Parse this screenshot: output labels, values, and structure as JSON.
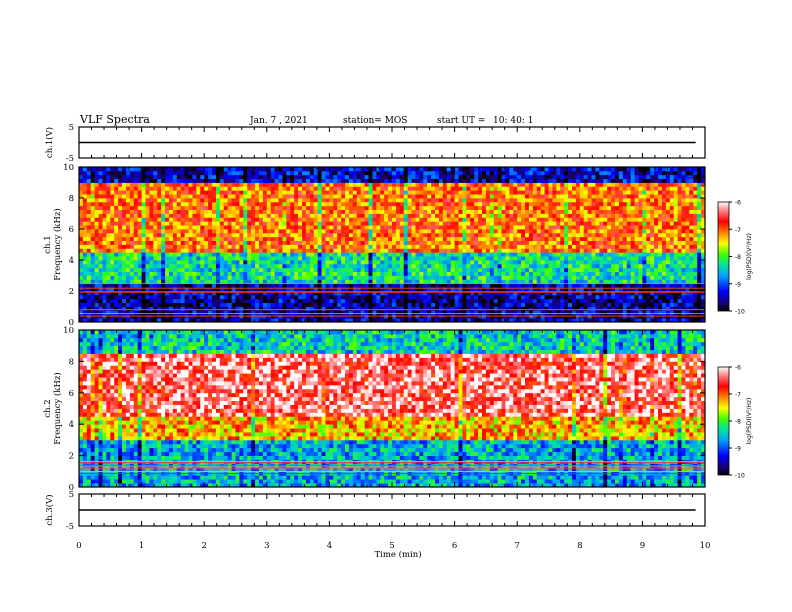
{
  "header": {
    "title": "VLF Spectra",
    "date": "Jan. 7 , 2021",
    "station": "station= MOS",
    "start": "start UT =",
    "start_time": "10: 40: 1"
  },
  "chart_data": [
    {
      "type": "line",
      "id": "ch1-waveform",
      "ylabel": "ch.1(V)",
      "ylim": [
        -5,
        5
      ],
      "yticks": [
        "5",
        "-5"
      ],
      "xlim": [
        0,
        10
      ],
      "series": [
        {
          "values": [
            [
              0,
              0
            ],
            [
              9.85,
              0
            ]
          ]
        }
      ]
    },
    {
      "type": "heatmap",
      "id": "ch1-spectrogram",
      "ylabel": "ch.1\nFrequency (kHz)",
      "ylim": [
        0,
        10
      ],
      "yticks": [
        "0",
        "2",
        "4",
        "6",
        "8",
        "10"
      ],
      "xlim": [
        0,
        10
      ],
      "colorbar": {
        "label": "log(PSD)(V²/Hz)",
        "range": [
          -10,
          -6
        ],
        "ticks": [
          "-6",
          "-7",
          "-8",
          "-9",
          "-10"
        ]
      },
      "bands": [
        {
          "freq": [
            0,
            2.5
          ],
          "level": -9.5
        },
        {
          "freq": [
            2.5,
            4.5
          ],
          "level": -8.3
        },
        {
          "freq": [
            4.5,
            9.0
          ],
          "level": -7.0
        },
        {
          "freq": [
            9.0,
            10
          ],
          "level": -9.4
        }
      ]
    },
    {
      "type": "heatmap",
      "id": "ch2-spectrogram",
      "ylabel": "ch.2\nFrequency (kHz)",
      "ylim": [
        0,
        10
      ],
      "yticks": [
        "0",
        "2",
        "4",
        "6",
        "8",
        "10"
      ],
      "xlim": [
        0,
        10
      ],
      "colorbar": {
        "label": "log(PSD)(V²/Hz)",
        "range": [
          -10,
          -6
        ],
        "ticks": [
          "-6",
          "-7",
          "-8",
          "-9",
          "-10"
        ]
      },
      "bands": [
        {
          "freq": [
            0,
            3.0
          ],
          "level": -8.6
        },
        {
          "freq": [
            3.0,
            4.5
          ],
          "level": -7.3
        },
        {
          "freq": [
            4.5,
            8.5
          ],
          "level": -6.4
        },
        {
          "freq": [
            8.5,
            10
          ],
          "level": -8.4
        }
      ]
    },
    {
      "type": "line",
      "id": "ch3-waveform",
      "ylabel": "ch.3(V)",
      "ylim": [
        -5,
        5
      ],
      "yticks": [
        "5",
        "-5"
      ],
      "xlim": [
        0,
        10
      ],
      "series": [
        {
          "values": [
            [
              0,
              0
            ],
            [
              9.85,
              0
            ]
          ]
        }
      ]
    }
  ],
  "x_axis": {
    "label": "Time (min)",
    "ticks": [
      "0",
      "1",
      "2",
      "3",
      "4",
      "5",
      "6",
      "7",
      "8",
      "9",
      "10"
    ]
  }
}
